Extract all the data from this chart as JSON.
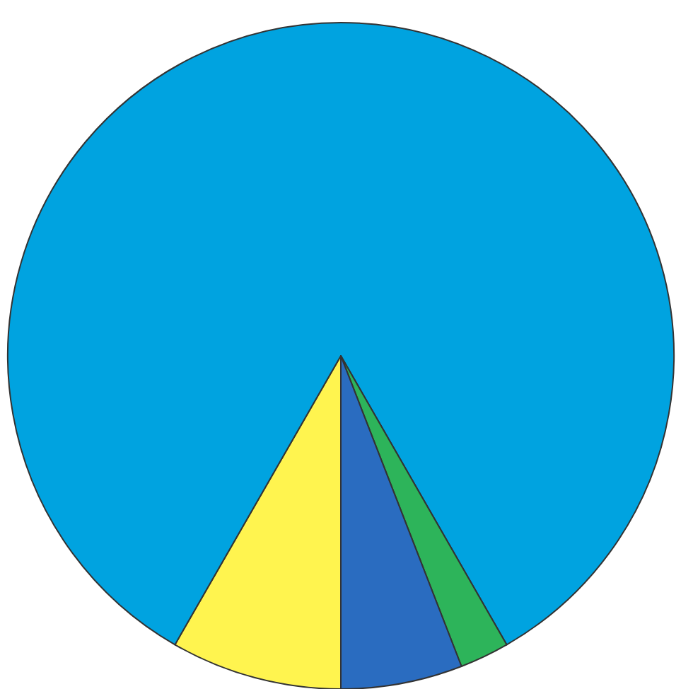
{
  "chart_data": {
    "type": "pie",
    "categories": [
      null,
      null,
      null,
      null
    ],
    "values": [
      8.3,
      83.4,
      2.4,
      5.9
    ],
    "colors": [
      "#fff44f",
      "#00a3e0",
      "#2db45a",
      "#2a6cc0"
    ],
    "legend": false
  }
}
